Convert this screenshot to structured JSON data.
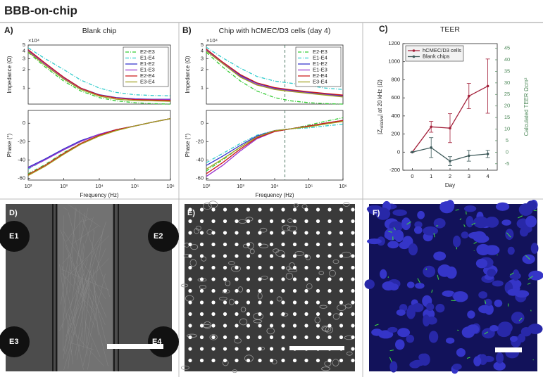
{
  "title": "BBB-on-chip",
  "chart_data": [
    {
      "type": "line",
      "label": "A)",
      "title": "Blank chip",
      "ylabel": "Impedance (Ω)",
      "y_multiplier": "×10⁴",
      "x": [
        100,
        300,
        1000,
        3000,
        10000,
        30000,
        100000,
        300000,
        1000000
      ],
      "xlim": [
        100,
        1000000
      ],
      "xlog": true,
      "ylim": [
        0.55,
        5
      ],
      "ylog": true,
      "yticks": [
        1,
        2,
        3,
        4,
        5
      ],
      "legend": "upper right",
      "grid": false,
      "series": [
        {
          "name": "E2-E3",
          "color": "#33cc33",
          "dash": "dashdot",
          "values": [
            3.8,
            2.2,
            1.3,
            0.9,
            0.7,
            0.62,
            0.58,
            0.56,
            0.55
          ]
        },
        {
          "name": "E1-E4",
          "color": "#33cccc",
          "dash": "dashdot",
          "values": [
            4.5,
            3.0,
            2.0,
            1.35,
            1.0,
            0.85,
            0.78,
            0.76,
            0.75
          ]
        },
        {
          "name": "E1-E2",
          "color": "#3333cc",
          "values": [
            4.1,
            2.5,
            1.5,
            1.0,
            0.78,
            0.7,
            0.67,
            0.66,
            0.66
          ]
        },
        {
          "name": "E1-E3",
          "color": "#9933cc",
          "values": [
            4.0,
            2.45,
            1.45,
            0.98,
            0.77,
            0.69,
            0.66,
            0.65,
            0.65
          ]
        },
        {
          "name": "E2-E4",
          "color": "#cc1a1a",
          "values": [
            4.2,
            2.55,
            1.5,
            1.0,
            0.77,
            0.69,
            0.65,
            0.64,
            0.63
          ]
        },
        {
          "name": "E3-E4",
          "color": "#a0a020",
          "values": [
            3.9,
            2.35,
            1.4,
            0.95,
            0.74,
            0.66,
            0.63,
            0.62,
            0.61
          ]
        }
      ]
    },
    {
      "type": "line",
      "ylabel": "Phase (°)",
      "xlabel": "Frequency (Hz)",
      "x": [
        100,
        300,
        1000,
        3000,
        10000,
        30000,
        100000,
        300000,
        1000000
      ],
      "xlim": [
        100,
        1000000
      ],
      "xlog": true,
      "xticks": [
        {
          "value": 100,
          "label": "10²"
        },
        {
          "value": 1000,
          "label": "10³"
        },
        {
          "value": 10000,
          "label": "10⁴"
        },
        {
          "value": 100000,
          "label": "10⁵"
        },
        {
          "value": 1000000,
          "label": "10⁶"
        }
      ],
      "ylim": [
        -62,
        14
      ],
      "yticks": [
        -60,
        -40,
        -20,
        0
      ],
      "grid": false,
      "series": [
        {
          "color": "#33cc33",
          "dash": "dashdot",
          "values": [
            -55,
            -45,
            -32,
            -22,
            -13,
            -7,
            -3,
            1,
            5
          ]
        },
        {
          "color": "#33cccc",
          "dash": "dashdot",
          "values": [
            -50,
            -40,
            -29,
            -20,
            -12,
            -7,
            -3,
            1,
            5
          ]
        },
        {
          "color": "#3333cc",
          "values": [
            -48,
            -39,
            -28,
            -19,
            -12,
            -7,
            -3,
            1,
            5
          ]
        },
        {
          "color": "#9933cc",
          "values": [
            -49,
            -40,
            -29,
            -20,
            -12,
            -7,
            -3,
            1,
            5
          ]
        },
        {
          "color": "#cc1a1a",
          "values": [
            -56,
            -46,
            -33,
            -22,
            -13,
            -7,
            -3,
            1,
            5
          ]
        },
        {
          "color": "#a0a020",
          "values": [
            -57,
            -47,
            -34,
            -23,
            -14,
            -8,
            -3,
            1,
            5
          ]
        }
      ]
    },
    {
      "type": "line",
      "label": "B)",
      "title": "Chip with hCMEC/D3 cells (day 4)",
      "ylabel": "Impedance (Ω)",
      "y_multiplier": "×10⁴",
      "x": [
        100,
        300,
        1000,
        3000,
        10000,
        30000,
        100000,
        300000,
        1000000
      ],
      "xlim": [
        100,
        1000000
      ],
      "xlog": true,
      "ylim": [
        0.55,
        5
      ],
      "ylog": true,
      "yticks": [
        1,
        2,
        3,
        4,
        5
      ],
      "legend": "upper right",
      "grid": false,
      "vline": 20000,
      "series": [
        {
          "name": "E2-E3",
          "color": "#33cc33",
          "dash": "dashdot",
          "values": [
            3.8,
            2.2,
            1.3,
            0.9,
            0.7,
            0.62,
            0.58,
            0.56,
            0.55
          ]
        },
        {
          "name": "E1-E4",
          "color": "#33cccc",
          "dash": "dashdot",
          "values": [
            4.6,
            3.1,
            2.1,
            1.55,
            1.3,
            1.2,
            1.1,
            1.0,
            0.95
          ]
        },
        {
          "name": "E1-E2",
          "color": "#3333cc",
          "values": [
            4.2,
            2.6,
            1.6,
            1.2,
            1.0,
            0.92,
            0.85,
            0.8,
            0.75
          ]
        },
        {
          "name": "E1-E3",
          "color": "#9933cc",
          "values": [
            4.1,
            2.55,
            1.55,
            1.15,
            0.97,
            0.9,
            0.83,
            0.78,
            0.73
          ]
        },
        {
          "name": "E2-E4",
          "color": "#cc1a1a",
          "values": [
            4.3,
            2.65,
            1.65,
            1.22,
            1.02,
            0.94,
            0.87,
            0.82,
            0.77
          ]
        },
        {
          "name": "E3-E4",
          "color": "#a0a020",
          "values": [
            4.0,
            2.5,
            1.5,
            1.12,
            0.95,
            0.88,
            0.82,
            0.77,
            0.72
          ]
        }
      ]
    },
    {
      "type": "line",
      "ylabel": "Phase (°)",
      "xlabel": "Frequency (Hz)",
      "x": [
        100,
        300,
        1000,
        3000,
        10000,
        30000,
        100000,
        300000,
        1000000
      ],
      "xlim": [
        100,
        1000000
      ],
      "xlog": true,
      "xticks": [
        {
          "value": 100,
          "label": "10²"
        },
        {
          "value": 1000,
          "label": "10³"
        },
        {
          "value": 10000,
          "label": "10⁴"
        },
        {
          "value": 100000,
          "label": "10⁵"
        },
        {
          "value": 1000000,
          "label": "10⁶"
        }
      ],
      "ylim": [
        -62,
        14
      ],
      "yticks": [
        -60,
        -40,
        -20,
        0
      ],
      "grid": false,
      "vline": 20000,
      "series": [
        {
          "color": "#33cc33",
          "dash": "dashdot",
          "values": [
            -52,
            -40,
            -26,
            -15,
            -9,
            -6,
            -2,
            2,
            6
          ]
        },
        {
          "color": "#33cccc",
          "dash": "dashdot",
          "values": [
            -43,
            -33,
            -22,
            -13,
            -8,
            -6,
            -5,
            -3,
            -1
          ]
        },
        {
          "color": "#3333cc",
          "values": [
            -46,
            -36,
            -24,
            -14,
            -8,
            -6,
            -3,
            0,
            3
          ]
        },
        {
          "color": "#9933cc",
          "values": [
            -58,
            -46,
            -30,
            -17,
            -9,
            -6,
            -3,
            0,
            3
          ]
        },
        {
          "color": "#cc1a1a",
          "values": [
            -55,
            -43,
            -28,
            -16,
            -9,
            -6,
            -3,
            0,
            3
          ]
        },
        {
          "color": "#a0a020",
          "values": [
            -50,
            -39,
            -26,
            -15,
            -8,
            -6,
            -4,
            -1,
            2
          ]
        }
      ]
    },
    {
      "type": "line",
      "label": "C)",
      "title": "TEER",
      "xlabel": "Day",
      "ylabel": [
        "|Z",
        "relative",
        "| at 20 kHz (Ω)"
      ],
      "y2label": "Calculated TEER Ωcm²",
      "x": [
        0,
        1,
        2,
        3,
        4
      ],
      "xlim": [
        -0.5,
        4.5
      ],
      "xticks": [
        0,
        1,
        2,
        3,
        4
      ],
      "ylim": [
        -200,
        1200
      ],
      "yticks": [
        -200,
        0,
        200,
        400,
        600,
        800,
        1000,
        1200
      ],
      "y2lim": [
        -7.8,
        47
      ],
      "y2ticks": [
        -5,
        0,
        5,
        10,
        15,
        20,
        25,
        30,
        35,
        40,
        45
      ],
      "legend": "upper left",
      "grid": false,
      "series": [
        {
          "name": "hCMEC/D3 cells",
          "color": "#a3203a",
          "values": [
            0,
            280,
            265,
            620,
            730
          ],
          "errors": [
            0,
            60,
            160,
            140,
            300
          ]
        },
        {
          "name": "Blank chips",
          "color": "#3d5959",
          "values": [
            0,
            50,
            -100,
            -40,
            -20
          ],
          "errors": [
            0,
            110,
            50,
            60,
            40
          ]
        }
      ]
    }
  ],
  "images": [
    {
      "label": "D)",
      "electrodes": [
        "E1",
        "E2",
        "E3",
        "E4"
      ]
    },
    {
      "label": "E)"
    },
    {
      "label": "F)"
    }
  ]
}
